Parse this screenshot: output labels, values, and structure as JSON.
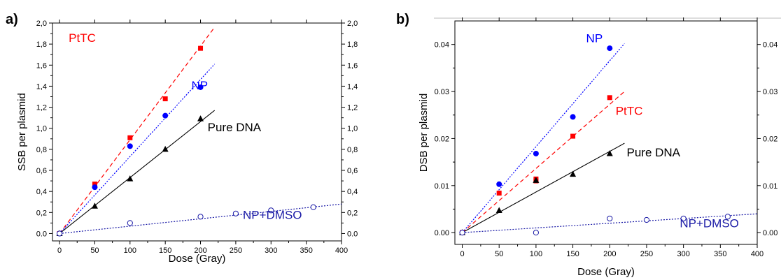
{
  "chart_data": [
    {
      "panel": "a)",
      "type": "scatter",
      "xlabel": "Dose (Gray)",
      "ylabel": "SSB per plasmid",
      "xlim": [
        -10,
        400
      ],
      "ylim": [
        -0.07,
        2.0
      ],
      "xticks": [
        0,
        50,
        100,
        150,
        200,
        250,
        300,
        350,
        400
      ],
      "yticks": [
        0.0,
        0.2,
        0.4,
        0.6,
        0.8,
        1.0,
        1.2,
        1.4,
        1.6,
        1.8,
        2.0
      ],
      "ytick_labels": [
        "0.0",
        "0,2",
        "0,4",
        "0,6",
        "0,8",
        "1,0",
        "1,2",
        "1,4",
        "1,6",
        "1,8",
        "2,0"
      ],
      "xtick_labels": [
        "0",
        "50",
        "100",
        "150",
        "200",
        "250",
        "300",
        "350",
        "400"
      ],
      "right_axis_mirror": true,
      "grid": false,
      "series": [
        {
          "name": "PtTC",
          "color": "#ff0000",
          "marker": "square",
          "line": "dashed",
          "x": [
            0,
            50,
            100,
            150,
            200
          ],
          "y": [
            0.0,
            0.47,
            0.91,
            1.28,
            1.76
          ],
          "fit": {
            "x": [
              0,
              220
            ],
            "y": [
              0.0,
              1.96
            ]
          },
          "label_at": [
            13,
            1.82
          ]
        },
        {
          "name": "NP",
          "color": "#0000ff",
          "marker": "circle",
          "line": "dotted",
          "x": [
            0,
            50,
            100,
            150,
            200
          ],
          "y": [
            0.0,
            0.44,
            0.83,
            1.12,
            1.39
          ],
          "fit": {
            "x": [
              0,
              220
            ],
            "y": [
              0.0,
              1.61
            ]
          },
          "label_at": [
            187,
            1.37
          ]
        },
        {
          "name": "Pure DNA",
          "color": "#000000",
          "marker": "triangle",
          "line": "solid",
          "x": [
            0,
            50,
            100,
            150,
            200
          ],
          "y": [
            0.0,
            0.26,
            0.52,
            0.8,
            1.09
          ],
          "fit": {
            "x": [
              0,
              220
            ],
            "y": [
              0.0,
              1.17
            ]
          },
          "label_at": [
            210,
            0.97
          ]
        },
        {
          "name": "NP+DMSO",
          "color": "#1a1aa6",
          "marker": "open-circle",
          "line": "dotted",
          "x": [
            0,
            100,
            200,
            250,
            300,
            360
          ],
          "y": [
            0.0,
            0.1,
            0.16,
            0.19,
            0.22,
            0.25
          ],
          "fit": {
            "x": [
              0,
              400
            ],
            "y": [
              0.0,
              0.28
            ]
          },
          "label_at": [
            260,
            0.14
          ]
        }
      ]
    },
    {
      "panel": "b)",
      "type": "scatter",
      "xlabel": "Dose (Gray)",
      "ylabel": "DSB per plasmid",
      "xlim": [
        -10,
        400
      ],
      "ylim": [
        -0.0025,
        0.045
      ],
      "xticks": [
        0,
        50,
        100,
        150,
        200,
        250,
        300,
        350,
        400
      ],
      "yticks": [
        0.0,
        0.01,
        0.02,
        0.03,
        0.04
      ],
      "ytick_labels": [
        "0.00",
        "0.01",
        "0.02",
        "0.03",
        "0.04"
      ],
      "right_ytick_labels": [
        "0.00",
        "0.01",
        "0.02",
        "0.03",
        "0.04"
      ],
      "xtick_labels": [
        "0",
        "50",
        "100",
        "150",
        "200",
        "250",
        "300",
        "350",
        "400"
      ],
      "right_axis_mirror": true,
      "grid": false,
      "series": [
        {
          "name": "NP",
          "color": "#0000ff",
          "marker": "circle",
          "line": "dotted",
          "x": [
            0,
            50,
            100,
            150,
            200
          ],
          "y": [
            0.0,
            0.0103,
            0.0168,
            0.0246,
            0.0392
          ],
          "fit": {
            "x": [
              0,
              220
            ],
            "y": [
              0.0,
              0.0402
            ]
          },
          "label_at": [
            168,
            0.0405
          ]
        },
        {
          "name": "PtTC",
          "color": "#ff0000",
          "marker": "square",
          "line": "dashed",
          "x": [
            0,
            50,
            100,
            100,
            150,
            200
          ],
          "y": [
            0.0,
            0.0084,
            0.011,
            0.0114,
            0.0205,
            0.0287
          ],
          "fit": {
            "x": [
              0,
              220
            ],
            "y": [
              0.0,
              0.03
            ]
          },
          "label_at": [
            208,
            0.025
          ]
        },
        {
          "name": "Pure DNA",
          "color": "#000000",
          "marker": "triangle",
          "line": "solid",
          "x": [
            0,
            50,
            100,
            150,
            200
          ],
          "y": [
            0.0,
            0.0047,
            0.0111,
            0.0124,
            0.0168
          ],
          "fit": {
            "x": [
              0,
              220
            ],
            "y": [
              0.0,
              0.019
            ]
          },
          "label_at": [
            223,
            0.0162
          ]
        },
        {
          "name": "NP+DMSO",
          "color": "#1a1aa6",
          "marker": "open-circle",
          "line": "dotted",
          "x": [
            0,
            100,
            200,
            250,
            300,
            360
          ],
          "y": [
            0.0,
            0.0,
            0.003,
            0.0027,
            0.003,
            0.0034
          ],
          "fit": {
            "x": [
              0,
              400
            ],
            "y": [
              0.0,
              0.004
            ]
          },
          "label_at": [
            295,
            0.0011
          ]
        }
      ]
    }
  ]
}
